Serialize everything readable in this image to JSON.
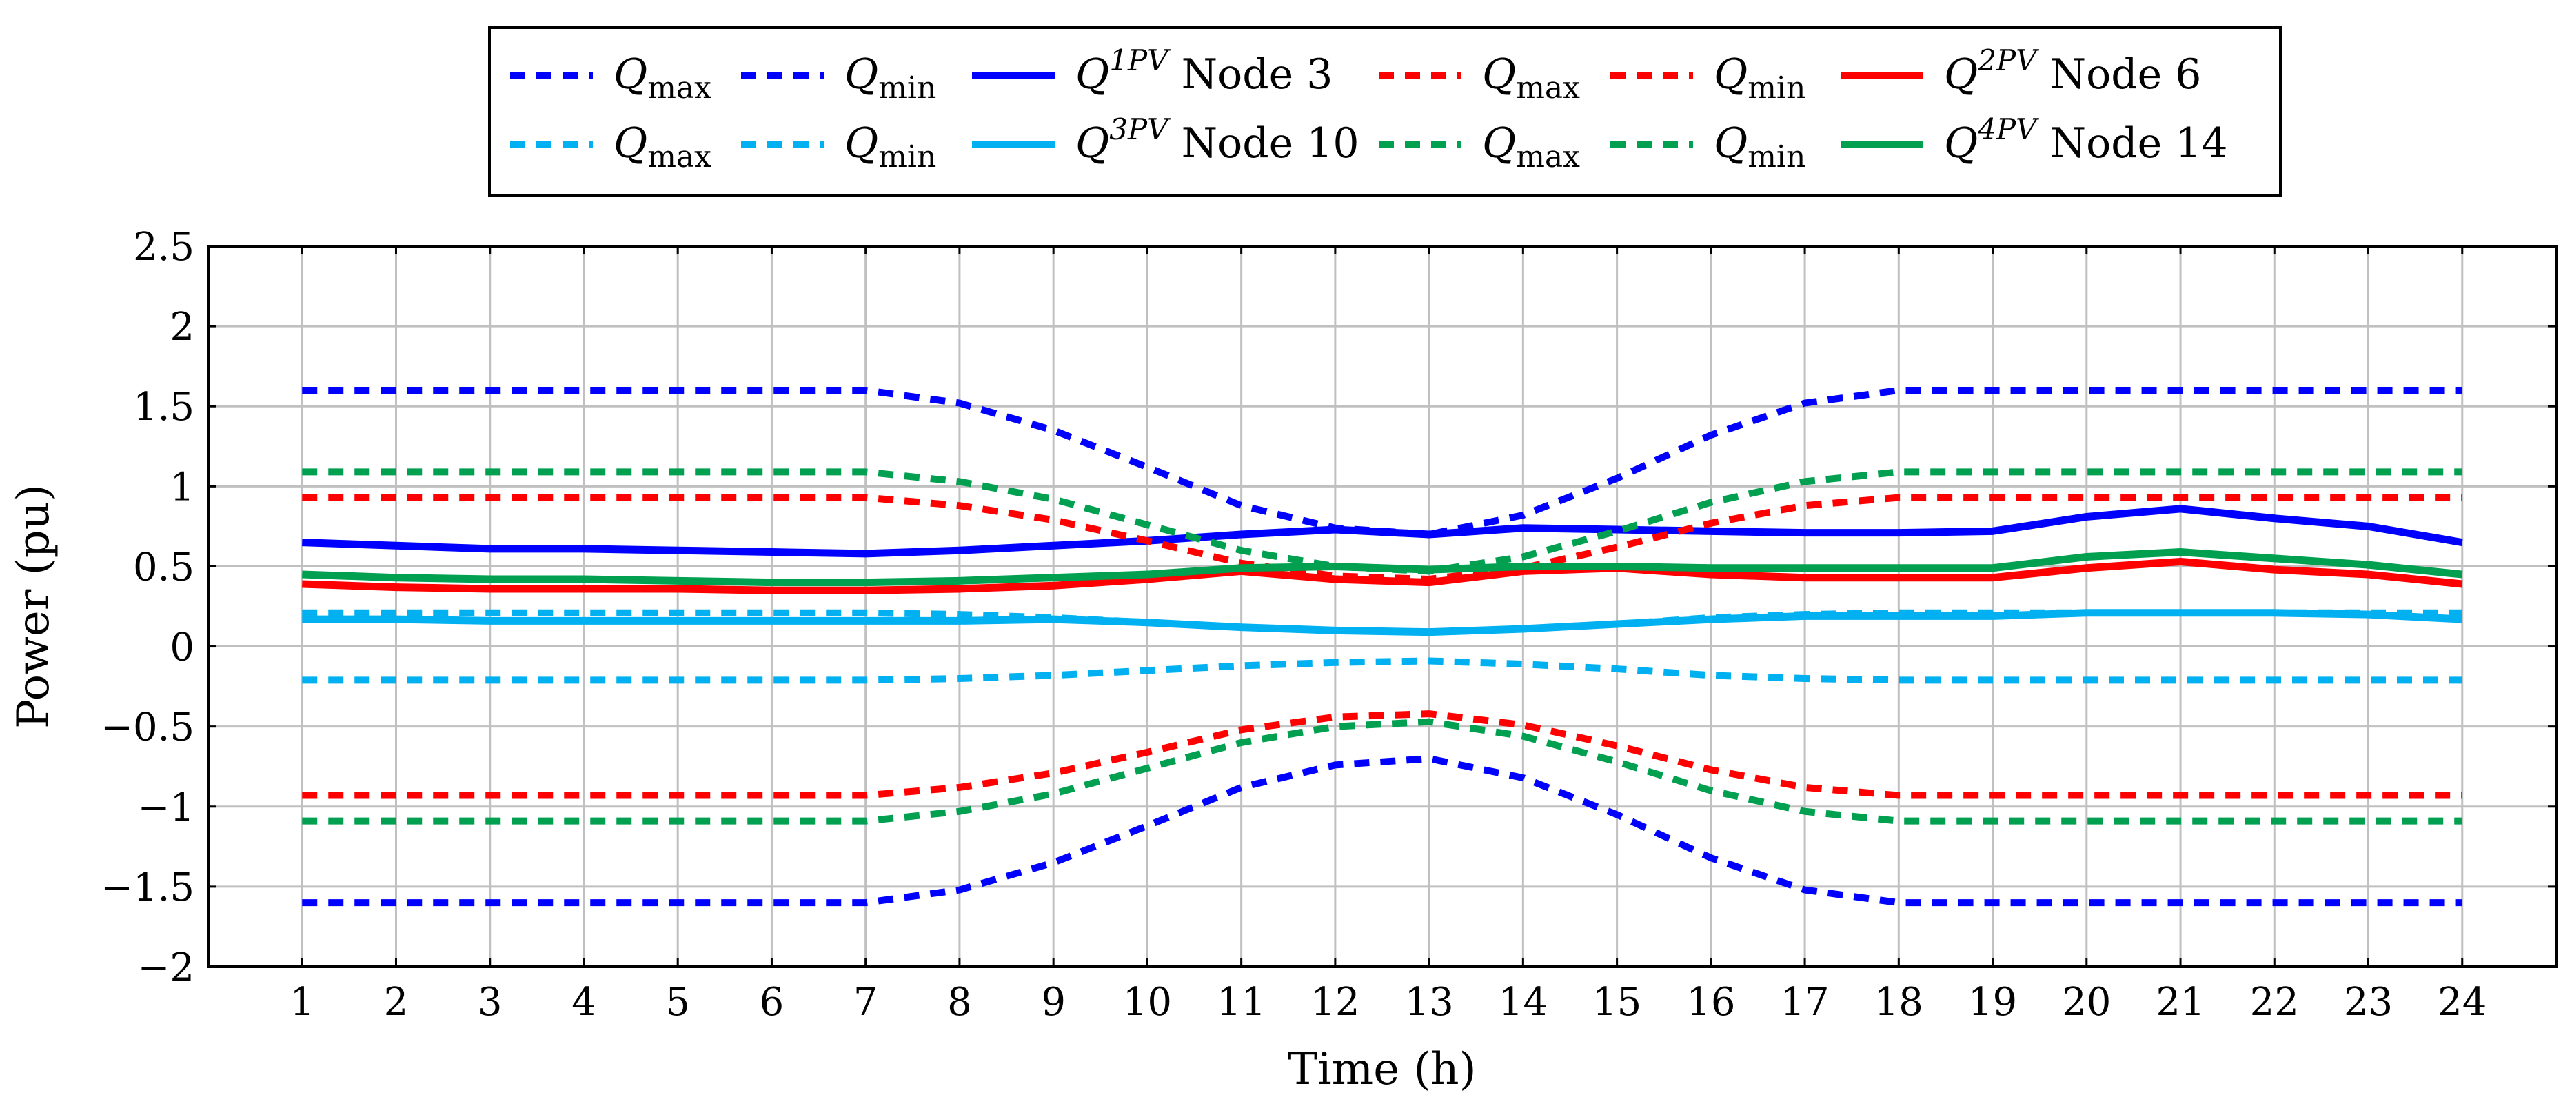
{
  "chart_data": {
    "type": "line",
    "title": "",
    "xlabel": "Time (h)",
    "ylabel": "Power (pu)",
    "xlim": [
      0,
      25
    ],
    "ylim": [
      -2,
      2.5
    ],
    "grid": true,
    "legend_position": "top-center",
    "x": [
      1,
      2,
      3,
      4,
      5,
      6,
      7,
      8,
      9,
      10,
      11,
      12,
      13,
      14,
      15,
      16,
      17,
      18,
      19,
      20,
      21,
      22,
      23,
      24
    ],
    "xticks": [
      "1",
      "2",
      "3",
      "4",
      "5",
      "6",
      "7",
      "8",
      "9",
      "10",
      "11",
      "12",
      "13",
      "14",
      "15",
      "16",
      "17",
      "18",
      "19",
      "20",
      "21",
      "22",
      "23",
      "24"
    ],
    "yticks": [
      "2.5",
      "2",
      "1.5",
      "1",
      "0.5",
      "0",
      "−0.5",
      "−1",
      "−1.5",
      "−2"
    ],
    "ytick_values": [
      2.5,
      2,
      1.5,
      1,
      0.5,
      0,
      -0.5,
      -1,
      -1.5,
      -2
    ],
    "series": [
      {
        "name": "Qmax",
        "base": "Q",
        "sub": "max",
        "color": "#0000ff",
        "dashed": true,
        "values": [
          1.6,
          1.6,
          1.6,
          1.6,
          1.6,
          1.6,
          1.6,
          1.52,
          1.35,
          1.12,
          0.88,
          0.74,
          0.7,
          0.82,
          1.05,
          1.32,
          1.52,
          1.6,
          1.6,
          1.6,
          1.6,
          1.6,
          1.6,
          1.6
        ]
      },
      {
        "name": "Qmin",
        "base": "Q",
        "sub": "min",
        "color": "#0000ff",
        "dashed": true,
        "values": [
          -1.6,
          -1.6,
          -1.6,
          -1.6,
          -1.6,
          -1.6,
          -1.6,
          -1.52,
          -1.35,
          -1.12,
          -0.88,
          -0.74,
          -0.7,
          -0.82,
          -1.05,
          -1.32,
          -1.52,
          -1.6,
          -1.6,
          -1.6,
          -1.6,
          -1.6,
          -1.6,
          -1.6
        ]
      },
      {
        "name": "Q1PV Node 3",
        "base": "Q",
        "sup": "1PV",
        "suffix": " Node 3",
        "color": "#0000ff",
        "dashed": false,
        "values": [
          0.65,
          0.63,
          0.61,
          0.61,
          0.6,
          0.59,
          0.58,
          0.6,
          0.63,
          0.66,
          0.7,
          0.73,
          0.7,
          0.74,
          0.73,
          0.72,
          0.71,
          0.71,
          0.72,
          0.81,
          0.86,
          0.8,
          0.75,
          0.65
        ]
      },
      {
        "name": "Qmax",
        "base": "Q",
        "sub": "max",
        "color": "#ff0000",
        "dashed": true,
        "values": [
          0.93,
          0.93,
          0.93,
          0.93,
          0.93,
          0.93,
          0.93,
          0.88,
          0.79,
          0.66,
          0.52,
          0.44,
          0.42,
          0.49,
          0.62,
          0.77,
          0.88,
          0.93,
          0.93,
          0.93,
          0.93,
          0.93,
          0.93,
          0.93
        ]
      },
      {
        "name": "Qmin",
        "base": "Q",
        "sub": "min",
        "color": "#ff0000",
        "dashed": true,
        "values": [
          -0.93,
          -0.93,
          -0.93,
          -0.93,
          -0.93,
          -0.93,
          -0.93,
          -0.88,
          -0.79,
          -0.66,
          -0.52,
          -0.44,
          -0.42,
          -0.49,
          -0.62,
          -0.77,
          -0.88,
          -0.93,
          -0.93,
          -0.93,
          -0.93,
          -0.93,
          -0.93,
          -0.93
        ]
      },
      {
        "name": "Q2PV Node 6",
        "base": "Q",
        "sup": "2PV",
        "suffix": " Node 6",
        "color": "#ff0000",
        "dashed": false,
        "values": [
          0.39,
          0.37,
          0.36,
          0.36,
          0.36,
          0.35,
          0.35,
          0.36,
          0.38,
          0.42,
          0.47,
          0.42,
          0.4,
          0.47,
          0.49,
          0.45,
          0.43,
          0.43,
          0.43,
          0.49,
          0.53,
          0.48,
          0.45,
          0.39
        ]
      },
      {
        "name": "Qmax",
        "base": "Q",
        "sub": "max",
        "color": "#00b0f0",
        "dashed": true,
        "values": [
          0.21,
          0.21,
          0.21,
          0.21,
          0.21,
          0.21,
          0.21,
          0.2,
          0.18,
          0.15,
          0.12,
          0.1,
          0.09,
          0.11,
          0.14,
          0.18,
          0.2,
          0.21,
          0.21,
          0.21,
          0.21,
          0.21,
          0.21,
          0.21
        ]
      },
      {
        "name": "Qmin",
        "base": "Q",
        "sub": "min",
        "color": "#00b0f0",
        "dashed": true,
        "values": [
          -0.21,
          -0.21,
          -0.21,
          -0.21,
          -0.21,
          -0.21,
          -0.21,
          -0.2,
          -0.18,
          -0.15,
          -0.12,
          -0.1,
          -0.09,
          -0.11,
          -0.14,
          -0.18,
          -0.2,
          -0.21,
          -0.21,
          -0.21,
          -0.21,
          -0.21,
          -0.21,
          -0.21
        ]
      },
      {
        "name": "Q3PV Node 10",
        "base": "Q",
        "sup": "3PV",
        "suffix": " Node 10",
        "color": "#00b0f0",
        "dashed": false,
        "values": [
          0.17,
          0.17,
          0.16,
          0.16,
          0.16,
          0.16,
          0.16,
          0.16,
          0.17,
          0.15,
          0.12,
          0.1,
          0.09,
          0.11,
          0.14,
          0.17,
          0.19,
          0.19,
          0.19,
          0.21,
          0.21,
          0.21,
          0.2,
          0.17
        ]
      },
      {
        "name": "Qmax",
        "base": "Q",
        "sub": "max",
        "color": "#00a050",
        "dashed": true,
        "values": [
          1.09,
          1.09,
          1.09,
          1.09,
          1.09,
          1.09,
          1.09,
          1.03,
          0.92,
          0.76,
          0.6,
          0.5,
          0.47,
          0.56,
          0.72,
          0.9,
          1.03,
          1.09,
          1.09,
          1.09,
          1.09,
          1.09,
          1.09,
          1.09
        ]
      },
      {
        "name": "Qmin",
        "base": "Q",
        "sub": "min",
        "color": "#00a050",
        "dashed": true,
        "values": [
          -1.09,
          -1.09,
          -1.09,
          -1.09,
          -1.09,
          -1.09,
          -1.09,
          -1.03,
          -0.92,
          -0.76,
          -0.6,
          -0.5,
          -0.47,
          -0.56,
          -0.72,
          -0.9,
          -1.03,
          -1.09,
          -1.09,
          -1.09,
          -1.09,
          -1.09,
          -1.09,
          -1.09
        ]
      },
      {
        "name": "Q4PV Node 14",
        "base": "Q",
        "sup": "4PV",
        "suffix": " Node 14",
        "color": "#00a050",
        "dashed": false,
        "values": [
          0.45,
          0.43,
          0.42,
          0.42,
          0.41,
          0.4,
          0.4,
          0.41,
          0.43,
          0.45,
          0.49,
          0.5,
          0.48,
          0.5,
          0.5,
          0.49,
          0.49,
          0.49,
          0.49,
          0.56,
          0.59,
          0.55,
          0.51,
          0.45
        ]
      }
    ]
  }
}
